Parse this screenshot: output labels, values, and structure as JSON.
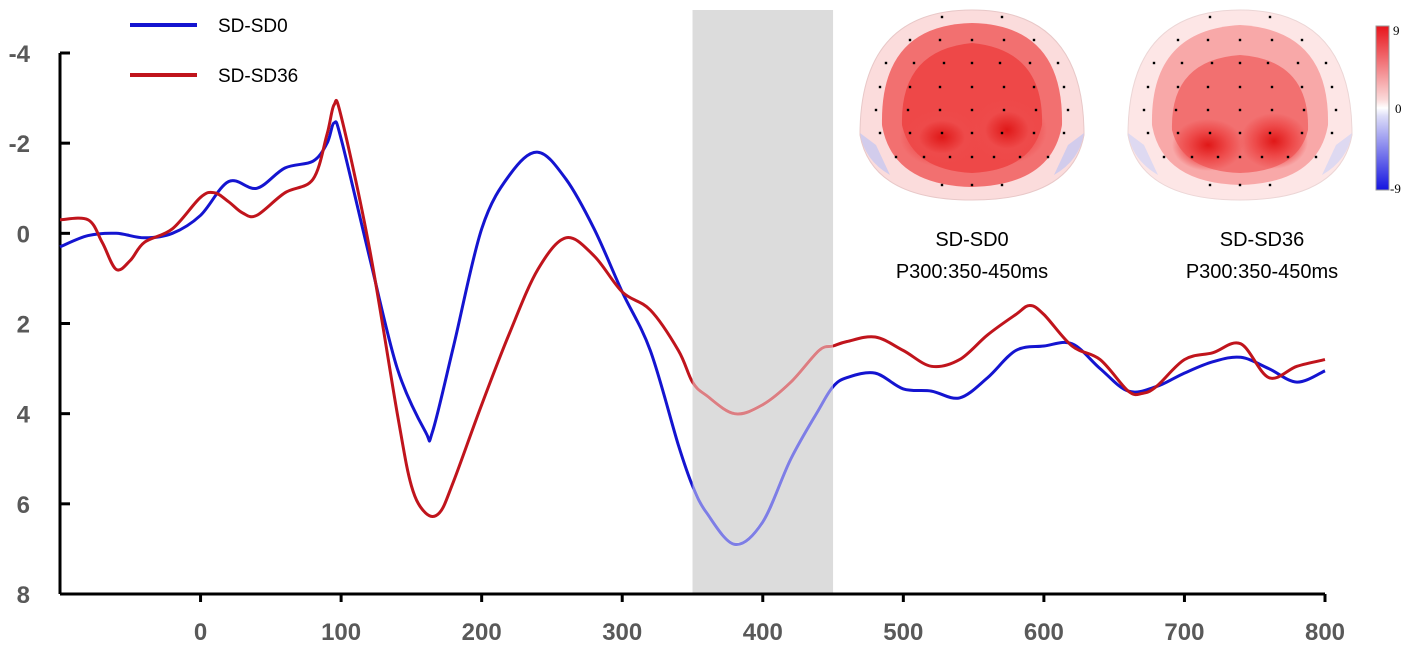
{
  "chart_data": {
    "type": "line",
    "title": "",
    "xlabel": "",
    "ylabel": "",
    "xlim": [
      -100,
      800
    ],
    "ylim": [
      -4,
      8
    ],
    "y_inverted": true,
    "grid": false,
    "legend_position": "top-left",
    "x_ticks": [
      0,
      100,
      200,
      300,
      400,
      500,
      600,
      700,
      800
    ],
    "y_ticks": [
      -4,
      -2,
      0,
      2,
      4,
      6,
      8
    ],
    "highlight_window": {
      "x": [
        350,
        450
      ],
      "color": "#dcdcdc"
    },
    "series": [
      {
        "name": "SD-SD0",
        "color": "#1414d0",
        "x": [
          -100,
          -80,
          -60,
          -40,
          -20,
          0,
          20,
          40,
          60,
          80,
          90,
          95,
          100,
          120,
          140,
          160,
          165,
          180,
          200,
          220,
          240,
          260,
          280,
          300,
          320,
          340,
          350,
          360,
          380,
          400,
          420,
          440,
          450,
          460,
          480,
          500,
          520,
          540,
          560,
          580,
          600,
          620,
          640,
          660,
          680,
          700,
          720,
          740,
          760,
          780,
          800
        ],
        "y": [
          0.3,
          0.05,
          0.0,
          0.1,
          0.0,
          -0.4,
          -1.15,
          -1.0,
          -1.45,
          -1.6,
          -2.0,
          -2.45,
          -2.1,
          0.5,
          3.0,
          4.4,
          4.4,
          2.5,
          -0.1,
          -1.3,
          -1.8,
          -1.2,
          -0.1,
          1.3,
          2.6,
          4.7,
          5.6,
          6.2,
          6.9,
          6.4,
          5.0,
          3.9,
          3.4,
          3.2,
          3.1,
          3.45,
          3.5,
          3.65,
          3.2,
          2.6,
          2.5,
          2.45,
          3.0,
          3.5,
          3.4,
          3.1,
          2.85,
          2.75,
          3.0,
          3.3,
          3.05
        ]
      },
      {
        "name": "SD-SD36",
        "color": "#c0141c",
        "x": [
          -100,
          -80,
          -70,
          -60,
          -50,
          -40,
          -20,
          0,
          10,
          20,
          30,
          40,
          60,
          80,
          90,
          95,
          100,
          120,
          140,
          150,
          160,
          170,
          180,
          200,
          220,
          240,
          260,
          280,
          300,
          320,
          340,
          350,
          360,
          380,
          400,
          420,
          440,
          450,
          460,
          480,
          500,
          520,
          540,
          560,
          580,
          590,
          600,
          620,
          640,
          660,
          670,
          680,
          700,
          720,
          740,
          760,
          780,
          800
        ],
        "y": [
          -0.3,
          -0.3,
          0.2,
          0.8,
          0.6,
          0.2,
          -0.1,
          -0.8,
          -0.9,
          -0.7,
          -0.45,
          -0.4,
          -0.9,
          -1.2,
          -2.2,
          -2.85,
          -2.6,
          0.3,
          4.0,
          5.6,
          6.2,
          6.2,
          5.5,
          3.8,
          2.2,
          0.8,
          0.1,
          0.5,
          1.3,
          1.7,
          2.6,
          3.3,
          3.6,
          4.0,
          3.8,
          3.3,
          2.6,
          2.5,
          2.4,
          2.3,
          2.6,
          2.95,
          2.8,
          2.25,
          1.8,
          1.6,
          1.8,
          2.5,
          2.8,
          3.5,
          3.55,
          3.4,
          2.8,
          2.65,
          2.45,
          3.2,
          2.95,
          2.8
        ]
      }
    ],
    "topomaps": [
      {
        "caption_line1": "SD-SD0",
        "caption_line2": "P300:350-450ms"
      },
      {
        "caption_line1": "SD-SD36",
        "caption_line2": "P300:350-450ms"
      }
    ],
    "colorbar": {
      "max_label": "9",
      "mid_label": "0",
      "min_label": "-9",
      "high_color": "#e8141c",
      "low_color": "#1414e0"
    }
  }
}
